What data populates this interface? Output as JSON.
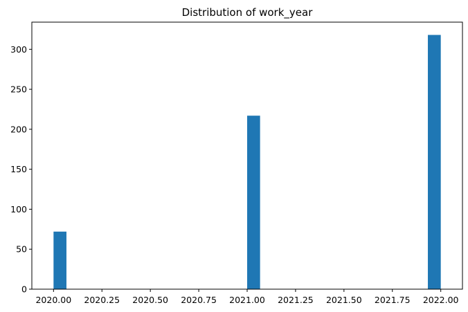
{
  "chart_data": {
    "type": "bar",
    "title": "Distribution of work_year",
    "xlabel": "",
    "ylabel": "",
    "x_ticks": [
      "2020.00",
      "2020.25",
      "2020.50",
      "2020.75",
      "2021.00",
      "2021.25",
      "2021.50",
      "2021.75",
      "2022.00"
    ],
    "x_tick_values": [
      2020.0,
      2020.25,
      2020.5,
      2020.75,
      2021.0,
      2021.25,
      2021.5,
      2021.75,
      2022.0
    ],
    "y_ticks": [
      "0",
      "50",
      "100",
      "150",
      "200",
      "250",
      "300"
    ],
    "y_tick_values": [
      0,
      50,
      100,
      150,
      200,
      250,
      300
    ],
    "xlim": [
      1999.9,
      2022.1
    ],
    "ylim": [
      0,
      334
    ],
    "bins": 30,
    "bin_range": [
      2020.0,
      2022.0
    ],
    "bars": [
      {
        "x_start": 2020.0,
        "x_end": 2020.0667,
        "value": 72
      },
      {
        "x_start": 2021.0,
        "x_end": 2021.0667,
        "value": 217
      },
      {
        "x_start": 2021.9333,
        "x_end": 2022.0,
        "value": 318
      }
    ],
    "bar_color": "#1f77b4",
    "grid": false
  }
}
